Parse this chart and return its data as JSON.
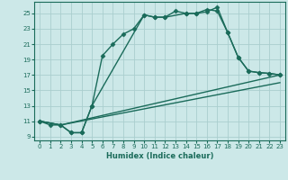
{
  "xlabel": "Humidex (Indice chaleur)",
  "bg_color": "#cce8e8",
  "grid_color": "#aacece",
  "line_color": "#1a6b5a",
  "xlim": [
    -0.5,
    23.5
  ],
  "ylim": [
    8.5,
    26.5
  ],
  "xticks": [
    0,
    1,
    2,
    3,
    4,
    5,
    6,
    7,
    8,
    9,
    10,
    11,
    12,
    13,
    14,
    15,
    16,
    17,
    18,
    19,
    20,
    21,
    22,
    23
  ],
  "yticks": [
    9,
    11,
    13,
    15,
    17,
    19,
    21,
    23,
    25
  ],
  "series": [
    {
      "x": [
        0,
        1,
        2,
        3,
        4,
        5,
        6,
        7,
        8,
        9,
        10,
        11,
        12,
        13,
        14,
        15,
        16,
        17,
        18,
        19,
        20,
        21,
        22,
        23
      ],
      "y": [
        11,
        10.5,
        10.5,
        9.5,
        9.5,
        13,
        19.5,
        21,
        22.3,
        23,
        24.8,
        24.5,
        24.5,
        25.3,
        25,
        25,
        25.5,
        25.3,
        22.5,
        19.3,
        17.5,
        17.3,
        17.2,
        17
      ],
      "marker": "D",
      "lw": 1.0,
      "ms": 2.5
    },
    {
      "x": [
        0,
        2,
        23
      ],
      "y": [
        11,
        10.5,
        17
      ],
      "marker": null,
      "lw": 1.0,
      "ms": 0
    },
    {
      "x": [
        0,
        2,
        23
      ],
      "y": [
        11,
        10.5,
        16
      ],
      "marker": null,
      "lw": 1.0,
      "ms": 0
    },
    {
      "x": [
        0,
        2,
        3,
        4,
        5,
        10,
        11,
        12,
        14,
        15,
        16,
        17,
        18,
        19,
        20,
        21,
        22,
        23
      ],
      "y": [
        11,
        10.5,
        9.5,
        9.5,
        13,
        24.8,
        24.5,
        24.5,
        25,
        25,
        25.2,
        25.8,
        22.5,
        19.3,
        17.5,
        17.3,
        17.2,
        17
      ],
      "marker": "D",
      "lw": 1.0,
      "ms": 2.5
    }
  ]
}
